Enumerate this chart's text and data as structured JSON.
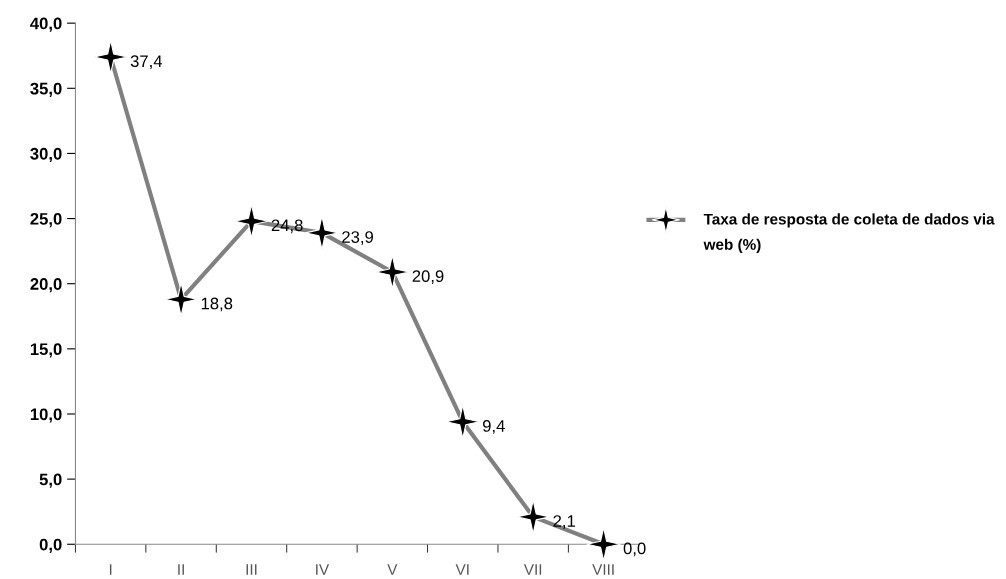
{
  "chart_data": {
    "type": "line",
    "categories": [
      "I",
      "II",
      "III",
      "IV",
      "V",
      "VI",
      "VII",
      "VIII"
    ],
    "series": [
      {
        "name": "Taxa de resposta de coleta de dados via web (%)",
        "color": "#808080",
        "values": [
          37.4,
          18.8,
          24.8,
          23.9,
          20.9,
          9.4,
          2.1,
          0.0
        ],
        "value_labels": [
          "37,4",
          "18,8",
          "24,8",
          "23,9",
          "20,9",
          "9,4",
          "2,1",
          "0,0"
        ]
      }
    ],
    "ylim": [
      0,
      40
    ],
    "yticks": [
      {
        "value": 0,
        "label": "0,0"
      },
      {
        "value": 5,
        "label": "5,0"
      },
      {
        "value": 10,
        "label": "10,0"
      },
      {
        "value": 15,
        "label": "15,0"
      },
      {
        "value": 20,
        "label": "20,0"
      },
      {
        "value": 25,
        "label": "25,0"
      },
      {
        "value": 30,
        "label": "30,0"
      },
      {
        "value": 35,
        "label": "35,0"
      },
      {
        "value": 40,
        "label": "40,0"
      }
    ],
    "marker": "star",
    "line_style": "solid",
    "grid": false,
    "legend": "right"
  }
}
